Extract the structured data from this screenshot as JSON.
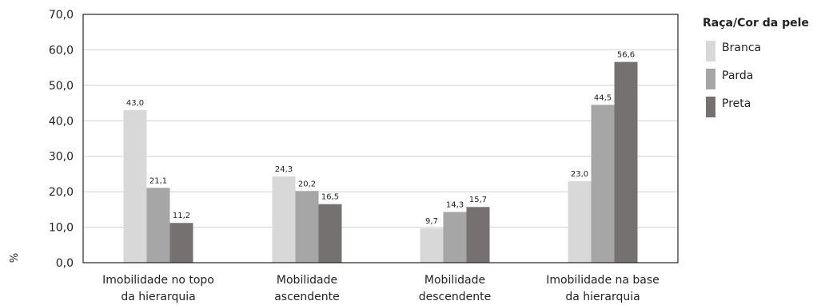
{
  "chart_data": {
    "type": "bar",
    "ylabel": "%",
    "ylim": [
      0,
      70
    ],
    "ytick_values": [
      0,
      10,
      20,
      30,
      40,
      50,
      60,
      70
    ],
    "ytick_labels": [
      "0,0",
      "10,0",
      "20,0",
      "30,0",
      "40,0",
      "50,0",
      "60,0",
      "70,0"
    ],
    "grid": true,
    "legend_title": "Raça/Cor da pele",
    "legend_position": "right",
    "categories": [
      [
        "Imobilidade no topo",
        "da hierarquia"
      ],
      [
        "Mobilidade",
        "ascendente"
      ],
      [
        "Mobilidade",
        "descendente"
      ],
      [
        "Imobilidade na base",
        "da hierarquia"
      ]
    ],
    "series": [
      {
        "name": "Branca",
        "color": "#d8d8d8",
        "values": [
          43.0,
          24.3,
          9.7,
          23.0
        ],
        "labels": [
          "43,0",
          "24,3",
          "9,7",
          "23,0"
        ]
      },
      {
        "name": "Parda",
        "color": "#a6a6a6",
        "values": [
          21.1,
          20.2,
          14.3,
          44.5
        ],
        "labels": [
          "21,1",
          "20,2",
          "14,3",
          "44,5"
        ]
      },
      {
        "name": "Preta",
        "color": "#767171",
        "values": [
          11.2,
          16.5,
          15.7,
          56.6
        ],
        "labels": [
          "11,2",
          "16,5",
          "15,7",
          "56,6"
        ]
      }
    ]
  }
}
